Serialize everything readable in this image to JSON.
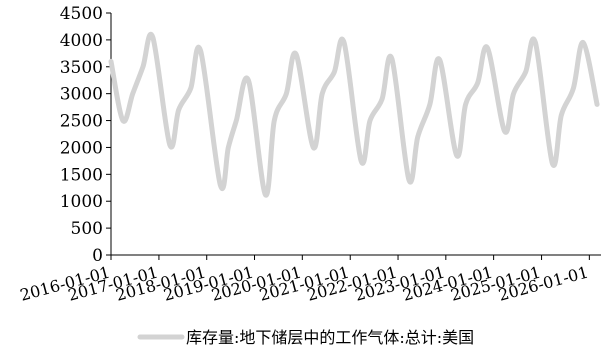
{
  "chart_data": {
    "type": "line",
    "title": "",
    "xlabel": "",
    "ylabel": "",
    "ylim": [
      0,
      4500
    ],
    "y_ticks": [
      0,
      500,
      1000,
      1500,
      2000,
      2500,
      3000,
      3500,
      4000,
      4500
    ],
    "x_range": [
      "2016-01-01",
      "2026-03-31"
    ],
    "x_ticks": [
      "2016-01-01",
      "2017-01-01",
      "2018-01-01",
      "2019-01-01",
      "2020-01-01",
      "2021-01-01",
      "2022-01-01",
      "2023-01-01",
      "2024-01-01",
      "2025-01-01",
      "2026-01-01"
    ],
    "grid": false,
    "legend_position": "bottom",
    "colors": {
      "series": "#d3d3d3",
      "axis": "#000000"
    },
    "series": [
      {
        "name": "库存量:地下储层中的工作气体:总计:美国",
        "x": [
          "2016-01-01",
          "2016-04-01",
          "2016-06-15",
          "2016-09-01",
          "2016-11-15",
          "2017-03-25",
          "2017-06-01",
          "2017-09-01",
          "2017-11-15",
          "2018-04-15",
          "2018-06-15",
          "2018-08-15",
          "2018-11-15",
          "2019-03-25",
          "2019-06-01",
          "2019-09-01",
          "2019-11-15",
          "2020-03-25",
          "2020-06-01",
          "2020-09-01",
          "2020-11-15",
          "2021-03-25",
          "2021-06-01",
          "2021-09-01",
          "2021-11-15",
          "2022-03-25",
          "2022-06-01",
          "2022-09-01",
          "2022-11-15",
          "2023-03-25",
          "2023-06-01",
          "2023-09-01",
          "2023-11-15",
          "2024-03-25",
          "2024-06-01",
          "2024-09-01",
          "2024-11-15",
          "2025-03-25",
          "2025-06-01",
          "2025-09-01",
          "2025-11-15",
          "2026-03-01"
        ],
        "values": [
          3600,
          2500,
          3000,
          3500,
          4050,
          2050,
          2700,
          3100,
          3800,
          1300,
          2000,
          2500,
          3250,
          1120,
          2500,
          3000,
          3730,
          2000,
          3000,
          3400,
          3950,
          1750,
          2500,
          2900,
          3650,
          1400,
          2200,
          2800,
          3630,
          1850,
          2800,
          3200,
          3850,
          2300,
          3000,
          3400,
          3950,
          1700,
          2600,
          3100,
          3950,
          2800
        ]
      }
    ]
  }
}
